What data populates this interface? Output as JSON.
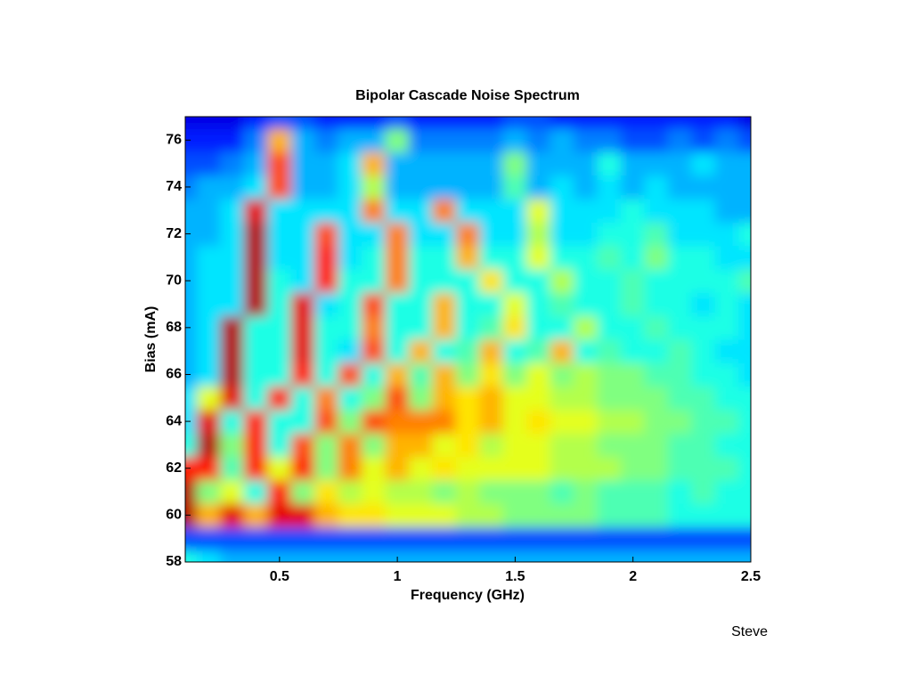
{
  "chart_data": {
    "type": "heatmap",
    "title": "Bipolar Cascade Noise Spectrum",
    "x_label": "Frequency (GHz)",
    "y_label": "Bias (mA)",
    "annotation": "Steve",
    "colormap": "jet",
    "zlim": [
      0,
      1
    ],
    "xlim": [
      0.1,
      2.5
    ],
    "ylim": [
      58,
      77
    ],
    "xticks": [
      0.5,
      1,
      1.5,
      2,
      2.5
    ],
    "yticks": [
      58,
      60,
      62,
      64,
      66,
      68,
      70,
      72,
      74,
      76
    ],
    "x": [
      0.1,
      0.2,
      0.3,
      0.4,
      0.5,
      0.6,
      0.7,
      0.8,
      0.9,
      1.0,
      1.1,
      1.2,
      1.3,
      1.4,
      1.5,
      1.6,
      1.7,
      1.8,
      1.9,
      2.0,
      2.1,
      2.2,
      2.3,
      2.4,
      2.5
    ],
    "y": [
      58,
      59,
      60,
      61,
      62,
      63,
      64,
      65,
      66,
      67,
      68,
      69,
      70,
      71,
      72,
      73,
      74,
      75,
      76,
      77
    ],
    "z": [
      [
        0.4,
        0.35,
        0.3,
        0.3,
        0.3,
        0.3,
        0.3,
        0.3,
        0.3,
        0.3,
        0.3,
        0.3,
        0.3,
        0.3,
        0.3,
        0.3,
        0.3,
        0.3,
        0.3,
        0.3,
        0.3,
        0.3,
        0.3,
        0.3,
        0.3
      ],
      [
        0.2,
        0.2,
        0.2,
        0.2,
        0.2,
        0.2,
        0.2,
        0.2,
        0.2,
        0.2,
        0.2,
        0.2,
        0.2,
        0.2,
        0.2,
        0.2,
        0.2,
        0.2,
        0.2,
        0.2,
        0.2,
        0.2,
        0.2,
        0.2,
        0.2
      ],
      [
        0.95,
        0.7,
        0.9,
        0.7,
        0.9,
        0.9,
        0.7,
        0.65,
        0.65,
        0.6,
        0.6,
        0.6,
        0.55,
        0.55,
        0.5,
        0.5,
        0.5,
        0.5,
        0.45,
        0.45,
        0.45,
        0.4,
        0.4,
        0.4,
        0.4
      ],
      [
        0.95,
        0.5,
        0.6,
        0.4,
        0.85,
        0.5,
        0.65,
        0.55,
        0.6,
        0.55,
        0.55,
        0.5,
        0.55,
        0.5,
        0.5,
        0.5,
        0.45,
        0.5,
        0.45,
        0.45,
        0.45,
        0.4,
        0.45,
        0.4,
        0.4
      ],
      [
        0.85,
        0.85,
        0.45,
        0.85,
        0.6,
        0.85,
        0.5,
        0.75,
        0.6,
        0.7,
        0.6,
        0.65,
        0.6,
        0.6,
        0.6,
        0.6,
        0.55,
        0.55,
        0.55,
        0.5,
        0.5,
        0.45,
        0.45,
        0.45,
        0.4
      ],
      [
        0.4,
        0.95,
        0.5,
        0.85,
        0.4,
        0.8,
        0.5,
        0.75,
        0.5,
        0.7,
        0.7,
        0.6,
        0.65,
        0.55,
        0.6,
        0.6,
        0.55,
        0.55,
        0.5,
        0.5,
        0.5,
        0.45,
        0.45,
        0.4,
        0.4
      ],
      [
        0.35,
        0.9,
        0.4,
        0.85,
        0.4,
        0.4,
        0.8,
        0.5,
        0.8,
        0.75,
        0.75,
        0.75,
        0.65,
        0.7,
        0.6,
        0.65,
        0.6,
        0.6,
        0.55,
        0.55,
        0.5,
        0.5,
        0.45,
        0.45,
        0.4
      ],
      [
        0.35,
        0.6,
        0.9,
        0.4,
        0.85,
        0.4,
        0.75,
        0.4,
        0.5,
        0.8,
        0.5,
        0.7,
        0.65,
        0.7,
        0.6,
        0.6,
        0.55,
        0.55,
        0.5,
        0.5,
        0.5,
        0.45,
        0.45,
        0.4,
        0.4
      ],
      [
        0.3,
        0.35,
        0.95,
        0.4,
        0.4,
        0.85,
        0.4,
        0.8,
        0.4,
        0.7,
        0.45,
        0.7,
        0.5,
        0.65,
        0.5,
        0.6,
        0.5,
        0.55,
        0.5,
        0.5,
        0.45,
        0.45,
        0.4,
        0.4,
        0.35
      ],
      [
        0.3,
        0.35,
        0.95,
        0.4,
        0.4,
        0.9,
        0.4,
        0.35,
        0.8,
        0.4,
        0.7,
        0.4,
        0.45,
        0.7,
        0.4,
        0.45,
        0.7,
        0.4,
        0.45,
        0.4,
        0.4,
        0.45,
        0.4,
        0.35,
        0.35
      ],
      [
        0.3,
        0.35,
        0.95,
        0.4,
        0.4,
        0.9,
        0.4,
        0.4,
        0.75,
        0.4,
        0.4,
        0.7,
        0.4,
        0.45,
        0.65,
        0.4,
        0.4,
        0.55,
        0.4,
        0.4,
        0.45,
        0.4,
        0.4,
        0.4,
        0.35
      ],
      [
        0.3,
        0.35,
        0.35,
        0.95,
        0.4,
        0.9,
        0.35,
        0.4,
        0.8,
        0.4,
        0.4,
        0.7,
        0.4,
        0.4,
        0.6,
        0.4,
        0.45,
        0.4,
        0.4,
        0.45,
        0.4,
        0.4,
        0.35,
        0.4,
        0.35
      ],
      [
        0.3,
        0.35,
        0.35,
        0.95,
        0.4,
        0.35,
        0.85,
        0.4,
        0.4,
        0.75,
        0.4,
        0.4,
        0.4,
        0.65,
        0.4,
        0.4,
        0.55,
        0.4,
        0.4,
        0.45,
        0.4,
        0.4,
        0.4,
        0.4,
        0.45
      ],
      [
        0.3,
        0.35,
        0.35,
        0.95,
        0.35,
        0.35,
        0.85,
        0.35,
        0.4,
        0.75,
        0.4,
        0.4,
        0.7,
        0.4,
        0.4,
        0.6,
        0.4,
        0.4,
        0.45,
        0.4,
        0.5,
        0.4,
        0.4,
        0.35,
        0.35
      ],
      [
        0.3,
        0.3,
        0.35,
        0.95,
        0.35,
        0.35,
        0.8,
        0.35,
        0.35,
        0.75,
        0.35,
        0.35,
        0.75,
        0.35,
        0.35,
        0.55,
        0.35,
        0.35,
        0.4,
        0.4,
        0.45,
        0.35,
        0.35,
        0.35,
        0.4
      ],
      [
        0.3,
        0.3,
        0.35,
        0.9,
        0.35,
        0.35,
        0.35,
        0.35,
        0.75,
        0.35,
        0.35,
        0.75,
        0.35,
        0.35,
        0.35,
        0.6,
        0.35,
        0.35,
        0.35,
        0.4,
        0.35,
        0.35,
        0.35,
        0.3,
        0.3
      ],
      [
        0.25,
        0.3,
        0.3,
        0.35,
        0.8,
        0.3,
        0.3,
        0.35,
        0.55,
        0.3,
        0.3,
        0.3,
        0.3,
        0.3,
        0.45,
        0.3,
        0.35,
        0.3,
        0.35,
        0.3,
        0.35,
        0.3,
        0.3,
        0.3,
        0.3
      ],
      [
        0.2,
        0.2,
        0.25,
        0.3,
        0.8,
        0.3,
        0.3,
        0.35,
        0.7,
        0.3,
        0.3,
        0.3,
        0.3,
        0.3,
        0.5,
        0.3,
        0.3,
        0.3,
        0.4,
        0.3,
        0.3,
        0.3,
        0.35,
        0.3,
        0.3
      ],
      [
        0.15,
        0.15,
        0.15,
        0.25,
        0.7,
        0.3,
        0.25,
        0.3,
        0.3,
        0.5,
        0.25,
        0.25,
        0.25,
        0.25,
        0.3,
        0.25,
        0.3,
        0.25,
        0.25,
        0.2,
        0.2,
        0.25,
        0.2,
        0.25,
        0.2
      ],
      [
        0.1,
        0.1,
        0.1,
        0.15,
        0.2,
        0.2,
        0.15,
        0.15,
        0.15,
        0.2,
        0.15,
        0.15,
        0.15,
        0.15,
        0.2,
        0.2,
        0.15,
        0.15,
        0.15,
        0.15,
        0.15,
        0.15,
        0.15,
        0.15,
        0.1
      ]
    ]
  }
}
